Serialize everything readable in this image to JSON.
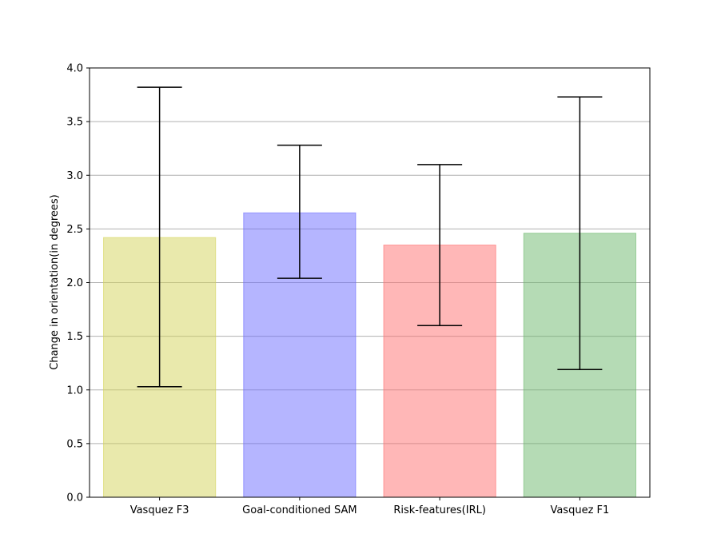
{
  "chart_data": {
    "type": "bar",
    "title": "",
    "xlabel": "",
    "ylabel": "Change in orientation(in degrees)",
    "categories": [
      "Vasquez F3",
      "Goal-conditioned SAM",
      "Risk-features(IRL)",
      "Vasquez F1"
    ],
    "values": [
      2.42,
      2.65,
      2.35,
      2.46
    ],
    "error_low": [
      1.03,
      2.04,
      1.6,
      1.19
    ],
    "error_high": [
      3.82,
      3.28,
      3.1,
      3.73
    ],
    "colors": [
      "#d4d45a",
      "#6b6bff",
      "#ff7070",
      "#6bb86b"
    ],
    "ylim": [
      0,
      4.0
    ],
    "yticks": [
      "0.0",
      "0.5",
      "1.0",
      "1.5",
      "2.0",
      "2.5",
      "3.0",
      "3.5",
      "4.0"
    ],
    "grid": "horizontal",
    "legend": "none"
  }
}
